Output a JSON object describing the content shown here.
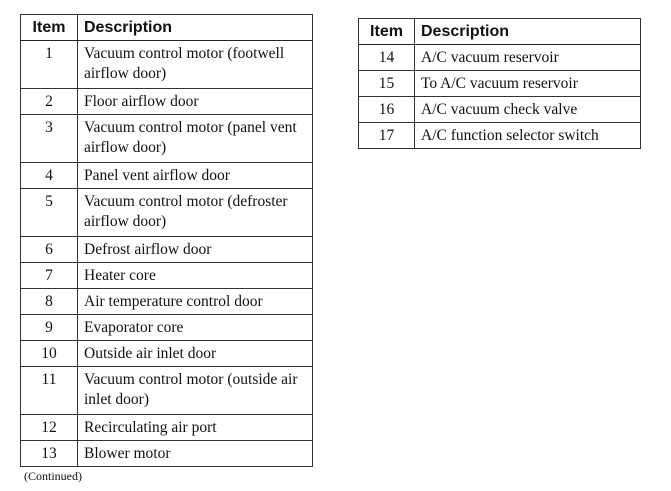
{
  "headers": {
    "item": "Item",
    "description": "Description"
  },
  "left_rows": [
    {
      "item": "1",
      "description": "Vacuum control motor (footwell airflow door)"
    },
    {
      "item": "2",
      "description": "Floor airflow door"
    },
    {
      "item": "3",
      "description": "Vacuum control motor (panel vent airflow door)"
    },
    {
      "item": "4",
      "description": "Panel vent airflow door"
    },
    {
      "item": "5",
      "description": "Vacuum control motor (defroster airflow door)"
    },
    {
      "item": "6",
      "description": "Defrost airflow door"
    },
    {
      "item": "7",
      "description": "Heater core"
    },
    {
      "item": "8",
      "description": "Air temperature control door"
    },
    {
      "item": "9",
      "description": "Evaporator core"
    },
    {
      "item": "10",
      "description": "Outside air inlet door"
    },
    {
      "item": "11",
      "description": "Vacuum control motor (outside air inlet door)"
    },
    {
      "item": "12",
      "description": "Recirculating air port"
    },
    {
      "item": "13",
      "description": "Blower motor"
    }
  ],
  "right_rows": [
    {
      "item": "14",
      "description": "A/C vacuum reservoir"
    },
    {
      "item": "15",
      "description": "To A/C vacuum reservoir"
    },
    {
      "item": "16",
      "description": "A/C vacuum check valve"
    },
    {
      "item": "17",
      "description": "A/C function selector switch"
    }
  ],
  "continued": "(Continued)"
}
